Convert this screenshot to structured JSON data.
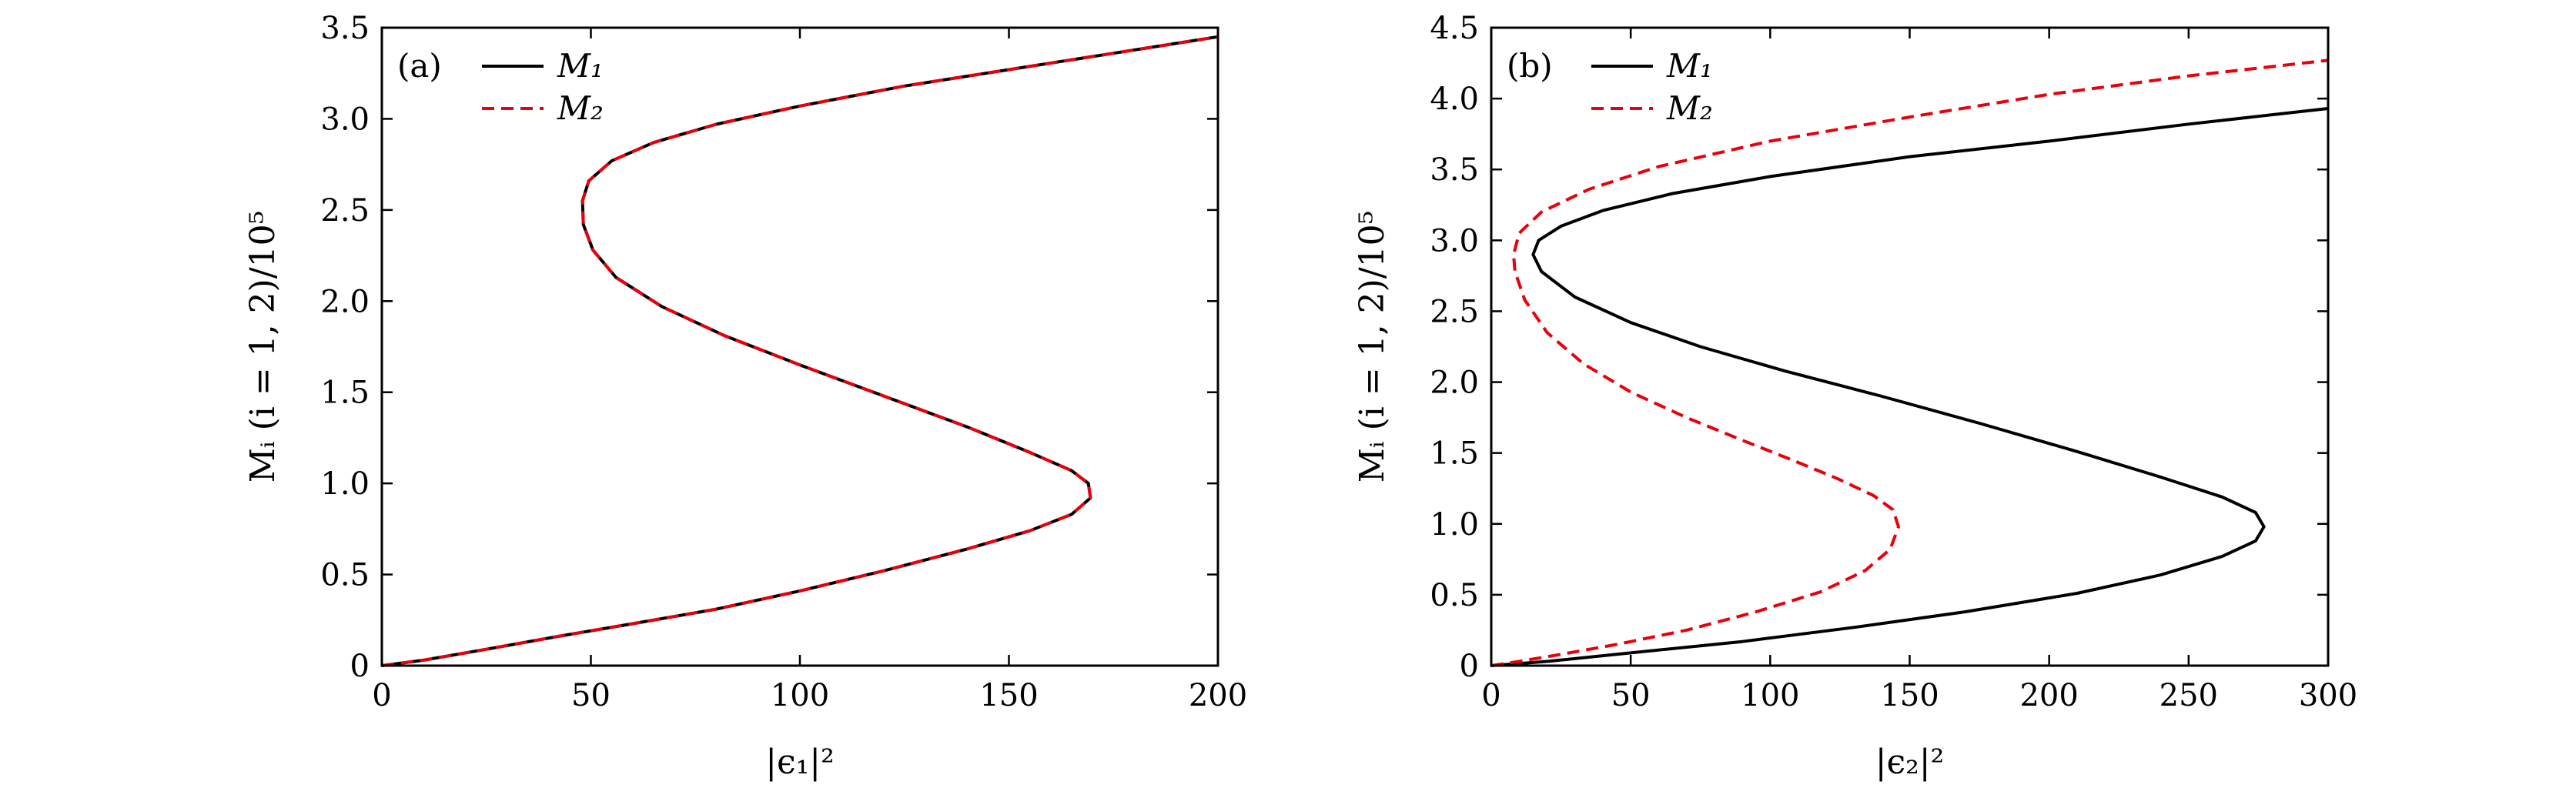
{
  "colors": {
    "M1": "#000000",
    "M2": "#e8000b"
  },
  "chart_data": [
    {
      "type": "line",
      "panel_label": "(a)",
      "xlabel": "|ϵ₁|²",
      "ylabel": "Mᵢ (i = 1, 2)/10⁵",
      "xlim": [
        0,
        200
      ],
      "ylim": [
        0,
        3.5
      ],
      "xticks": [
        0,
        50,
        100,
        150,
        200
      ],
      "yticks": [
        0,
        0.5,
        1.0,
        1.5,
        2.0,
        2.5,
        3.0,
        3.5
      ],
      "xtick_labels": [
        "0",
        "50",
        "100",
        "150",
        "200"
      ],
      "ytick_labels": [
        "0",
        "0.5",
        "1.0",
        "1.5",
        "2.0",
        "2.5",
        "3.0",
        "3.5"
      ],
      "legend": "top-left",
      "series": [
        {
          "name": "M₁",
          "color": "#000000",
          "style": "solid",
          "points": [
            [
              0,
              0
            ],
            [
              10,
              0.03
            ],
            [
              25,
              0.09
            ],
            [
              42,
              0.16
            ],
            [
              60,
              0.23
            ],
            [
              80,
              0.31
            ],
            [
              100,
              0.41
            ],
            [
              120,
              0.52
            ],
            [
              140,
              0.64
            ],
            [
              155,
              0.74
            ],
            [
              165,
              0.83
            ],
            [
              169.5,
              0.92
            ],
            [
              169,
              1.0
            ],
            [
              165,
              1.07
            ],
            [
              155,
              1.17
            ],
            [
              140,
              1.31
            ],
            [
              120,
              1.48
            ],
            [
              100,
              1.65
            ],
            [
              82,
              1.81
            ],
            [
              67,
              1.97
            ],
            [
              56,
              2.13
            ],
            [
              50.5,
              2.28
            ],
            [
              48.2,
              2.42
            ],
            [
              48,
              2.55
            ],
            [
              49.5,
              2.66
            ],
            [
              55,
              2.77
            ],
            [
              65,
              2.87
            ],
            [
              80,
              2.97
            ],
            [
              100,
              3.07
            ],
            [
              125,
              3.18
            ],
            [
              150,
              3.27
            ],
            [
              175,
              3.36
            ],
            [
              200,
              3.45
            ]
          ]
        },
        {
          "name": "M₂",
          "color": "#e8000b",
          "style": "dashed",
          "points": [
            [
              0,
              0
            ],
            [
              10,
              0.03
            ],
            [
              25,
              0.09
            ],
            [
              42,
              0.16
            ],
            [
              60,
              0.23
            ],
            [
              80,
              0.31
            ],
            [
              100,
              0.41
            ],
            [
              120,
              0.52
            ],
            [
              140,
              0.64
            ],
            [
              155,
              0.74
            ],
            [
              165,
              0.83
            ],
            [
              169.5,
              0.92
            ],
            [
              169,
              1.0
            ],
            [
              165,
              1.07
            ],
            [
              155,
              1.17
            ],
            [
              140,
              1.31
            ],
            [
              120,
              1.48
            ],
            [
              100,
              1.65
            ],
            [
              82,
              1.81
            ],
            [
              67,
              1.97
            ],
            [
              56,
              2.13
            ],
            [
              50.5,
              2.28
            ],
            [
              48.2,
              2.42
            ],
            [
              48,
              2.55
            ],
            [
              49.5,
              2.66
            ],
            [
              55,
              2.77
            ],
            [
              65,
              2.87
            ],
            [
              80,
              2.97
            ],
            [
              100,
              3.07
            ],
            [
              125,
              3.18
            ],
            [
              150,
              3.27
            ],
            [
              175,
              3.36
            ],
            [
              200,
              3.45
            ]
          ]
        }
      ]
    },
    {
      "type": "line",
      "panel_label": "(b)",
      "xlabel": "|ϵ₂|²",
      "ylabel": "Mᵢ (i = 1, 2)/10⁵",
      "xlim": [
        0,
        300
      ],
      "ylim": [
        0,
        4.5
      ],
      "xticks": [
        0,
        50,
        100,
        150,
        200,
        250,
        300
      ],
      "yticks": [
        0,
        0.5,
        1.0,
        1.5,
        2.0,
        2.5,
        3.0,
        3.5,
        4.0,
        4.5
      ],
      "xtick_labels": [
        "0",
        "50",
        "100",
        "150",
        "200",
        "250",
        "300"
      ],
      "ytick_labels": [
        "0",
        "0.5",
        "1.0",
        "1.5",
        "2.0",
        "2.5",
        "3.0",
        "3.5",
        "4.0",
        "4.5"
      ],
      "legend": "top-left",
      "series": [
        {
          "name": "M₁",
          "color": "#000000",
          "style": "solid",
          "points": [
            [
              0,
              0
            ],
            [
              20,
              0.03
            ],
            [
              50,
              0.09
            ],
            [
              90,
              0.17
            ],
            [
              130,
              0.27
            ],
            [
              170,
              0.38
            ],
            [
              210,
              0.51
            ],
            [
              240,
              0.64
            ],
            [
              262,
              0.77
            ],
            [
              274,
              0.88
            ],
            [
              277,
              0.98
            ],
            [
              274,
              1.08
            ],
            [
              262,
              1.19
            ],
            [
              240,
              1.33
            ],
            [
              210,
              1.51
            ],
            [
              175,
              1.71
            ],
            [
              140,
              1.9
            ],
            [
              105,
              2.08
            ],
            [
              75,
              2.25
            ],
            [
              50,
              2.42
            ],
            [
              30,
              2.6
            ],
            [
              18,
              2.78
            ],
            [
              15,
              2.9
            ],
            [
              17,
              3.0
            ],
            [
              25,
              3.1
            ],
            [
              40,
              3.21
            ],
            [
              65,
              3.33
            ],
            [
              100,
              3.45
            ],
            [
              150,
              3.59
            ],
            [
              200,
              3.7
            ],
            [
              250,
              3.82
            ],
            [
              300,
              3.93
            ]
          ]
        },
        {
          "name": "M₂",
          "color": "#e8000b",
          "style": "dashed",
          "points": [
            [
              0,
              0
            ],
            [
              10,
              0.03
            ],
            [
              25,
              0.08
            ],
            [
              45,
              0.15
            ],
            [
              70,
              0.25
            ],
            [
              95,
              0.38
            ],
            [
              118,
              0.52
            ],
            [
              134,
              0.67
            ],
            [
              143,
              0.82
            ],
            [
              146,
              0.98
            ],
            [
              144,
              1.1
            ],
            [
              137,
              1.2
            ],
            [
              124,
              1.32
            ],
            [
              108,
              1.45
            ],
            [
              90,
              1.59
            ],
            [
              70,
              1.75
            ],
            [
              50,
              1.93
            ],
            [
              33,
              2.13
            ],
            [
              20,
              2.35
            ],
            [
              12,
              2.58
            ],
            [
              8.5,
              2.78
            ],
            [
              8,
              2.9
            ],
            [
              10,
              3.05
            ],
            [
              18,
              3.2
            ],
            [
              35,
              3.36
            ],
            [
              60,
              3.52
            ],
            [
              100,
              3.7
            ],
            [
              150,
              3.87
            ],
            [
              200,
              4.03
            ],
            [
              250,
              4.16
            ],
            [
              300,
              4.27
            ]
          ]
        }
      ]
    }
  ]
}
